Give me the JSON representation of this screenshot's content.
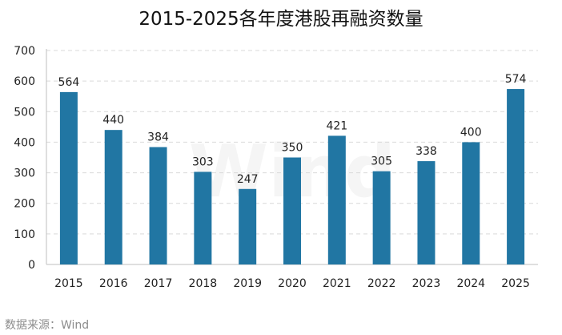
{
  "chart_data": {
    "type": "bar",
    "title": "2015-2025各年度港股再融资数量",
    "categories": [
      "2015",
      "2016",
      "2017",
      "2018",
      "2019",
      "2020",
      "2021",
      "2022",
      "2023",
      "2024",
      "2025"
    ],
    "values": [
      564,
      440,
      384,
      303,
      247,
      350,
      421,
      305,
      338,
      400,
      574
    ],
    "ylim": [
      0,
      700
    ],
    "yticks": [
      0,
      100,
      200,
      300,
      400,
      500,
      600,
      700
    ],
    "xlabel": "",
    "ylabel": "",
    "grid": true,
    "data_labels": true,
    "bar_color": "#2176a3",
    "watermark": "Wind"
  },
  "source": "数据来源：Wind"
}
